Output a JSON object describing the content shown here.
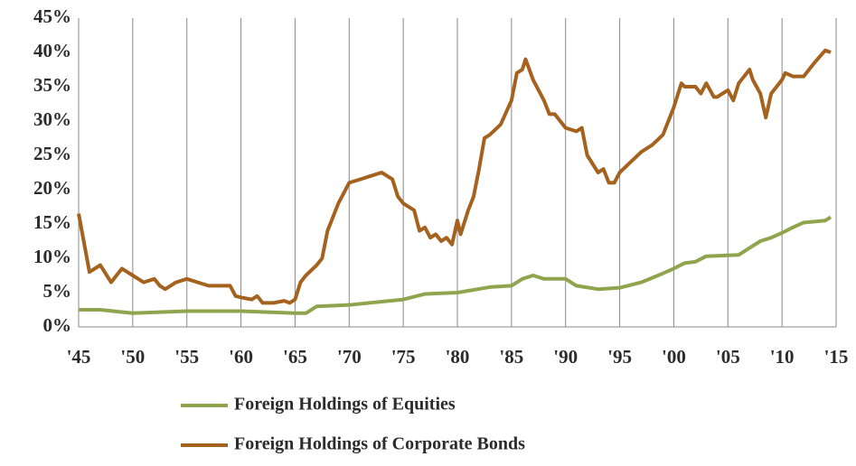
{
  "chart_data": {
    "type": "line",
    "xlim": [
      1945,
      2015
    ],
    "xticks": [
      {
        "value": 1945,
        "label": "'45"
      },
      {
        "value": 1950,
        "label": "'50"
      },
      {
        "value": 1955,
        "label": "'55"
      },
      {
        "value": 1960,
        "label": "'60"
      },
      {
        "value": 1965,
        "label": "'65"
      },
      {
        "value": 1970,
        "label": "'70"
      },
      {
        "value": 1975,
        "label": "'75"
      },
      {
        "value": 1980,
        "label": "'80"
      },
      {
        "value": 1985,
        "label": "'85"
      },
      {
        "value": 1990,
        "label": "'90"
      },
      {
        "value": 1995,
        "label": "'95"
      },
      {
        "value": 2000,
        "label": "'00"
      },
      {
        "value": 2005,
        "label": "'05"
      },
      {
        "value": 2010,
        "label": "'10"
      },
      {
        "value": 2015,
        "label": "'15"
      }
    ],
    "ylim": [
      0,
      45
    ],
    "yticks": [
      {
        "value": 0,
        "label": "0%"
      },
      {
        "value": 5,
        "label": "5%"
      },
      {
        "value": 10,
        "label": "10%"
      },
      {
        "value": 15,
        "label": "15%"
      },
      {
        "value": 20,
        "label": "20%"
      },
      {
        "value": 25,
        "label": "25%"
      },
      {
        "value": 30,
        "label": "30%"
      },
      {
        "value": 35,
        "label": "35%"
      },
      {
        "value": 40,
        "label": "40%"
      },
      {
        "value": 45,
        "label": "45%"
      }
    ],
    "grid": "x",
    "legend": "bottom",
    "series": [
      {
        "name": "Foreign Holdings of Equities",
        "color": "#8fa44d",
        "x": [
          1945,
          1947,
          1950,
          1955,
          1960,
          1965,
          1966,
          1967,
          1970,
          1975,
          1977,
          1980,
          1983,
          1985,
          1986,
          1987,
          1988,
          1990,
          1991,
          1993,
          1995,
          1997,
          1999,
          2000,
          2001,
          2002,
          2003,
          2006,
          2007,
          2008,
          2009,
          2010,
          2011,
          2012,
          2014,
          2014.5
        ],
        "values": [
          2.5,
          2.5,
          2,
          2.3,
          2.3,
          2,
          2,
          3,
          3.2,
          4,
          4.8,
          5,
          5.8,
          6,
          7,
          7.5,
          7,
          7,
          6,
          5.5,
          5.7,
          6.5,
          7.8,
          8.5,
          9.3,
          9.5,
          10.3,
          10.5,
          11.5,
          12.5,
          13,
          13.7,
          14.5,
          15.2,
          15.5,
          16
        ]
      },
      {
        "name": "Foreign Holdings of Corporate Bonds",
        "color": "#a4621e",
        "x": [
          1945,
          1946,
          1947,
          1948,
          1949,
          1950,
          1951,
          1952,
          1952.5,
          1953,
          1954,
          1955,
          1956,
          1957,
          1958,
          1959,
          1959.5,
          1960,
          1961,
          1961.5,
          1962,
          1963,
          1964,
          1964.5,
          1965,
          1965.5,
          1966,
          1967,
          1967.5,
          1968,
          1969,
          1970,
          1971,
          1972,
          1973,
          1974,
          1974.5,
          1975,
          1976,
          1976.5,
          1977,
          1977.5,
          1978,
          1978.5,
          1979,
          1979.5,
          1980,
          1980.3,
          1981,
          1981.5,
          1982,
          1982.5,
          1983,
          1984,
          1985,
          1985.5,
          1986,
          1986.3,
          1987,
          1988,
          1988.5,
          1989,
          1990,
          1991,
          1991.5,
          1992,
          1993,
          1993.5,
          1994,
          1994.5,
          1995,
          1996,
          1997,
          1998,
          1999,
          2000,
          2000.7,
          2001,
          2002,
          2002.5,
          2003,
          2003.7,
          2004,
          2005,
          2005.5,
          2006,
          2007,
          2007.3,
          2008,
          2008.5,
          2009,
          2010,
          2010.3,
          2011,
          2012,
          2013,
          2014,
          2014.5
        ],
        "values": [
          16.5,
          8,
          9,
          6.5,
          8.5,
          7.5,
          6.5,
          7,
          6,
          5.5,
          6.5,
          7,
          6.5,
          6,
          6,
          6,
          4.5,
          4.3,
          4,
          4.5,
          3.5,
          3.5,
          3.8,
          3.5,
          4,
          6.5,
          7.5,
          9,
          10,
          14,
          18,
          21,
          21.5,
          22,
          22.5,
          21.5,
          19,
          18,
          17,
          14,
          14.5,
          13,
          13.5,
          12.5,
          13,
          12,
          15.5,
          13.5,
          17,
          19,
          23,
          27.5,
          28,
          29.5,
          33,
          37,
          37.5,
          39,
          36,
          33,
          31,
          31,
          29,
          28.5,
          29,
          25,
          22.5,
          23,
          21,
          21,
          22.5,
          24,
          25.5,
          26.5,
          28,
          32,
          35.5,
          35,
          35,
          34,
          35.5,
          33.5,
          33.5,
          34.5,
          33,
          35.5,
          37.5,
          36,
          34,
          30.5,
          34,
          36,
          37,
          36.5,
          36.5,
          38.5,
          40.3,
          40
        ]
      }
    ]
  }
}
